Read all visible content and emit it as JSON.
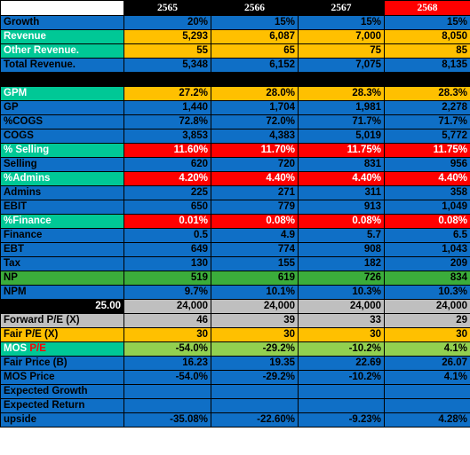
{
  "colors": {
    "blue": "#0f6fc6",
    "teal": "#00c896",
    "yellow": "#ffc000",
    "red": "#ff0000",
    "green": "#3bad3b",
    "gray": "#bfbfbf",
    "lime": "#92d050",
    "black": "#000000"
  },
  "header": [
    "",
    "2565",
    "2566",
    "2567",
    "2568"
  ],
  "rows": [
    {
      "label": "Growth",
      "values": [
        "20%",
        "15%",
        "15%",
        "15%"
      ],
      "style": "blue"
    },
    {
      "label": "Revenue",
      "values": [
        "5,293",
        "6,087",
        "7,000",
        "8,050"
      ],
      "style": "yellow",
      "label_style": "teal"
    },
    {
      "label": "Other Revenue.",
      "values": [
        "55",
        "65",
        "75",
        "85"
      ],
      "style": "yellow",
      "label_style": "teal"
    },
    {
      "label": "Total Revenue.",
      "values": [
        "5,348",
        "6,152",
        "7,075",
        "8,135"
      ],
      "style": "blue"
    },
    {
      "gap": true
    },
    {
      "label": "GPM",
      "values": [
        "27.2%",
        "28.0%",
        "28.3%",
        "28.3%"
      ],
      "style": "yellow",
      "label_style": "teal"
    },
    {
      "label": "GP",
      "values": [
        "1,440",
        "1,704",
        "1,981",
        "2,278"
      ],
      "style": "blue"
    },
    {
      "label": "%COGS",
      "values": [
        "72.8%",
        "72.0%",
        "71.7%",
        "71.7%"
      ],
      "style": "blue"
    },
    {
      "label": "COGS",
      "values": [
        "3,853",
        "4,383",
        "5,019",
        "5,772"
      ],
      "style": "blue"
    },
    {
      "label": "% Selling",
      "values": [
        "11.60%",
        "11.70%",
        "11.75%",
        "11.75%"
      ],
      "style": "red",
      "label_style": "teal"
    },
    {
      "label": "Selling",
      "values": [
        "620",
        "720",
        "831",
        "956"
      ],
      "style": "blue"
    },
    {
      "label": "%Admins",
      "values": [
        "4.20%",
        "4.40%",
        "4.40%",
        "4.40%"
      ],
      "style": "red",
      "label_style": "teal"
    },
    {
      "label": "Admins",
      "values": [
        "225",
        "271",
        "311",
        "358"
      ],
      "style": "blue"
    },
    {
      "label": "EBIT",
      "values": [
        "650",
        "779",
        "913",
        "1,049"
      ],
      "style": "blue"
    },
    {
      "label": "%Finance",
      "values": [
        "0.01%",
        "0.08%",
        "0.08%",
        "0.08%"
      ],
      "style": "red",
      "label_style": "teal"
    },
    {
      "label": "Finance",
      "values": [
        "0.5",
        "4.9",
        "5.7",
        "6.5"
      ],
      "style": "blue"
    },
    {
      "label": "EBT",
      "values": [
        "649",
        "774",
        "908",
        "1,043"
      ],
      "style": "blue"
    },
    {
      "label": "Tax",
      "values": [
        "130",
        "155",
        "182",
        "209"
      ],
      "style": "blue"
    },
    {
      "label": "NP",
      "values": [
        "519",
        "619",
        "726",
        "834"
      ],
      "style": "green"
    },
    {
      "label": "NPM",
      "values": [
        "9.7%",
        "10.1%",
        "10.3%",
        "10.3%"
      ],
      "style": "blue"
    },
    {
      "label": "25.00",
      "values": [
        "24,000",
        "24,000",
        "24,000",
        "24,000"
      ],
      "style": "gray",
      "label_style": "black"
    },
    {
      "label": "Forward P/E (X)",
      "values": [
        "46",
        "39",
        "33",
        "29"
      ],
      "style": "gray"
    },
    {
      "label": "Fair P/E (X)",
      "values": [
        "30",
        "30",
        "30",
        "30"
      ],
      "style": "yellow"
    },
    {
      "label": "MOS P/E",
      "values": [
        "-54.0%",
        "-29.2%",
        "-10.2%",
        "4.1%"
      ],
      "style": "lime",
      "label_style": "teal"
    },
    {
      "label": "Fair Price (B)",
      "values": [
        "16.23",
        "19.35",
        "22.69",
        "26.07"
      ],
      "style": "blue"
    },
    {
      "label": "MOS Price",
      "values": [
        "-54.0%",
        "-29.2%",
        "-10.2%",
        "4.1%"
      ],
      "style": "blue"
    },
    {
      "label": "Expected Growth",
      "values": [
        "",
        "",
        "",
        ""
      ],
      "style": "blue"
    },
    {
      "label": "Expected Return",
      "values": [
        "",
        "",
        "",
        ""
      ],
      "style": "blue"
    },
    {
      "label": "upside",
      "values": [
        "-35.08%",
        "-22.60%",
        "-9.23%",
        "4.28%"
      ],
      "style": "blue"
    }
  ]
}
